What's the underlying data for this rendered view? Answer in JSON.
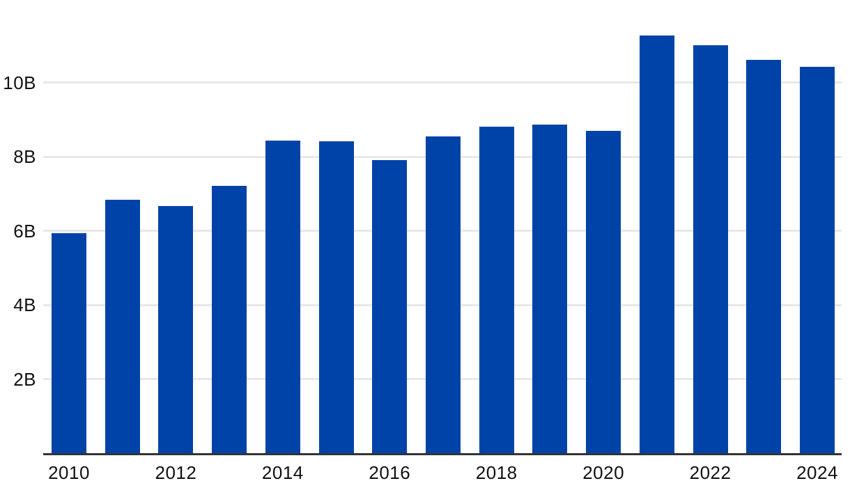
{
  "chart_data": {
    "type": "bar",
    "title": "",
    "xlabel": "",
    "ylabel": "",
    "categories": [
      "2010",
      "2011",
      "2012",
      "2013",
      "2014",
      "2015",
      "2016",
      "2017",
      "2018",
      "2019",
      "2020",
      "2021",
      "2022",
      "2023",
      "2024"
    ],
    "values": [
      5.94,
      6.83,
      6.66,
      7.21,
      8.44,
      8.41,
      7.9,
      8.55,
      8.8,
      8.87,
      8.7,
      11.26,
      11.0,
      10.62,
      10.43
    ],
    "unit": "B",
    "ylim": [
      0,
      12.3
    ],
    "y_ticks": [
      {
        "value": 2,
        "label": "2B"
      },
      {
        "value": 4,
        "label": "4B"
      },
      {
        "value": 6,
        "label": "6B"
      },
      {
        "value": 8,
        "label": "8B"
      },
      {
        "value": 10,
        "label": "10B"
      }
    ],
    "x_tick_labels": [
      "2010",
      "2012",
      "2014",
      "2016",
      "2018",
      "2020",
      "2022",
      "2024"
    ],
    "grid": "horizontal-only",
    "legend": "none",
    "colors": {
      "bar": "#0043a8",
      "gridline": "#e8e8e8",
      "axis_line": "#333333",
      "tick_text": "#111111",
      "background": "#ffffff"
    }
  }
}
